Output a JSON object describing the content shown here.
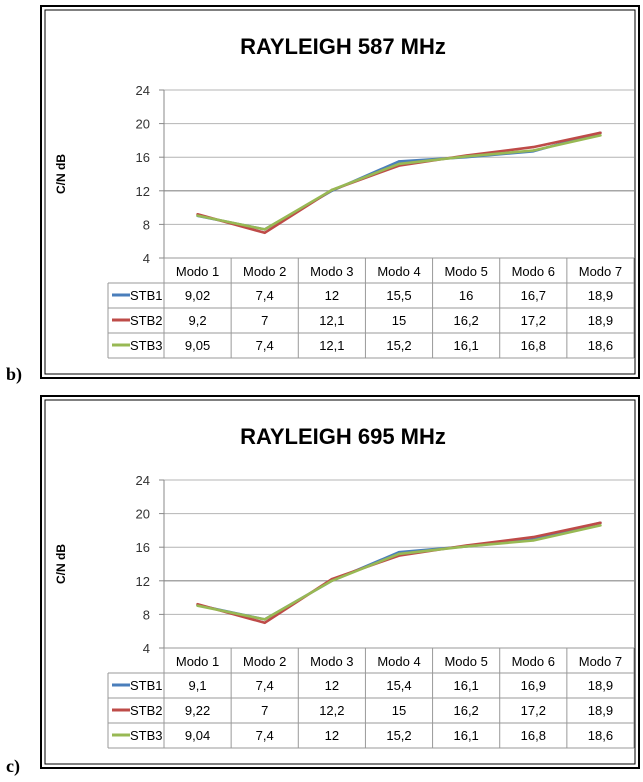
{
  "chart_data": [
    {
      "type": "line",
      "panel_label": "b)",
      "title": "RAYLEIGH 587 MHz",
      "ylabel": "C/N dB",
      "xlabel": "",
      "categories": [
        "Modo 1",
        "Modo 2",
        "Modo 3",
        "Modo 4",
        "Modo 5",
        "Modo 6",
        "Modo 7"
      ],
      "ylim": [
        4,
        24
      ],
      "yticks": [
        "4",
        "8",
        "12",
        "16",
        "20",
        "24"
      ],
      "legend": "data table",
      "series": [
        {
          "name": "STB1",
          "color": "#4a7ebb",
          "values": [
            9.02,
            7.4,
            12,
            15.5,
            16,
            16.7,
            18.9
          ],
          "labels": [
            "9,02",
            "7,4",
            "12",
            "15,5",
            "16",
            "16,7",
            "18,9"
          ]
        },
        {
          "name": "STB2",
          "color": "#be4b48",
          "values": [
            9.2,
            7,
            12.1,
            15,
            16.2,
            17.2,
            18.9
          ],
          "labels": [
            "9,2",
            "7",
            "12,1",
            "15",
            "16,2",
            "17,2",
            "18,9"
          ]
        },
        {
          "name": "STB3",
          "color": "#98b954",
          "values": [
            9.05,
            7.4,
            12.1,
            15.2,
            16.1,
            16.8,
            18.6
          ],
          "labels": [
            "9,05",
            "7,4",
            "12,1",
            "15,2",
            "16,1",
            "16,8",
            "18,6"
          ]
        }
      ]
    },
    {
      "type": "line",
      "panel_label": "c)",
      "title": "RAYLEIGH 695 MHz",
      "ylabel": "C/N dB",
      "xlabel": "",
      "categories": [
        "Modo 1",
        "Modo 2",
        "Modo 3",
        "Modo 4",
        "Modo 5",
        "Modo 6",
        "Modo 7"
      ],
      "ylim": [
        4,
        24
      ],
      "yticks": [
        "4",
        "8",
        "12",
        "16",
        "20",
        "24"
      ],
      "legend": "data table",
      "series": [
        {
          "name": "STB1",
          "color": "#4a7ebb",
          "values": [
            9.1,
            7.4,
            12,
            15.4,
            16.1,
            16.9,
            18.9
          ],
          "labels": [
            "9,1",
            "7,4",
            "12",
            "15,4",
            "16,1",
            "16,9",
            "18,9"
          ]
        },
        {
          "name": "STB2",
          "color": "#be4b48",
          "values": [
            9.22,
            7,
            12.2,
            15,
            16.2,
            17.2,
            18.9
          ],
          "labels": [
            "9,22",
            "7",
            "12,2",
            "15",
            "16,2",
            "17,2",
            "18,9"
          ]
        },
        {
          "name": "STB3",
          "color": "#98b954",
          "values": [
            9.04,
            7.4,
            12,
            15.2,
            16.1,
            16.8,
            18.6
          ],
          "labels": [
            "9,04",
            "7,4",
            "12",
            "15,2",
            "16,1",
            "16,8",
            "18,6"
          ]
        }
      ]
    }
  ]
}
